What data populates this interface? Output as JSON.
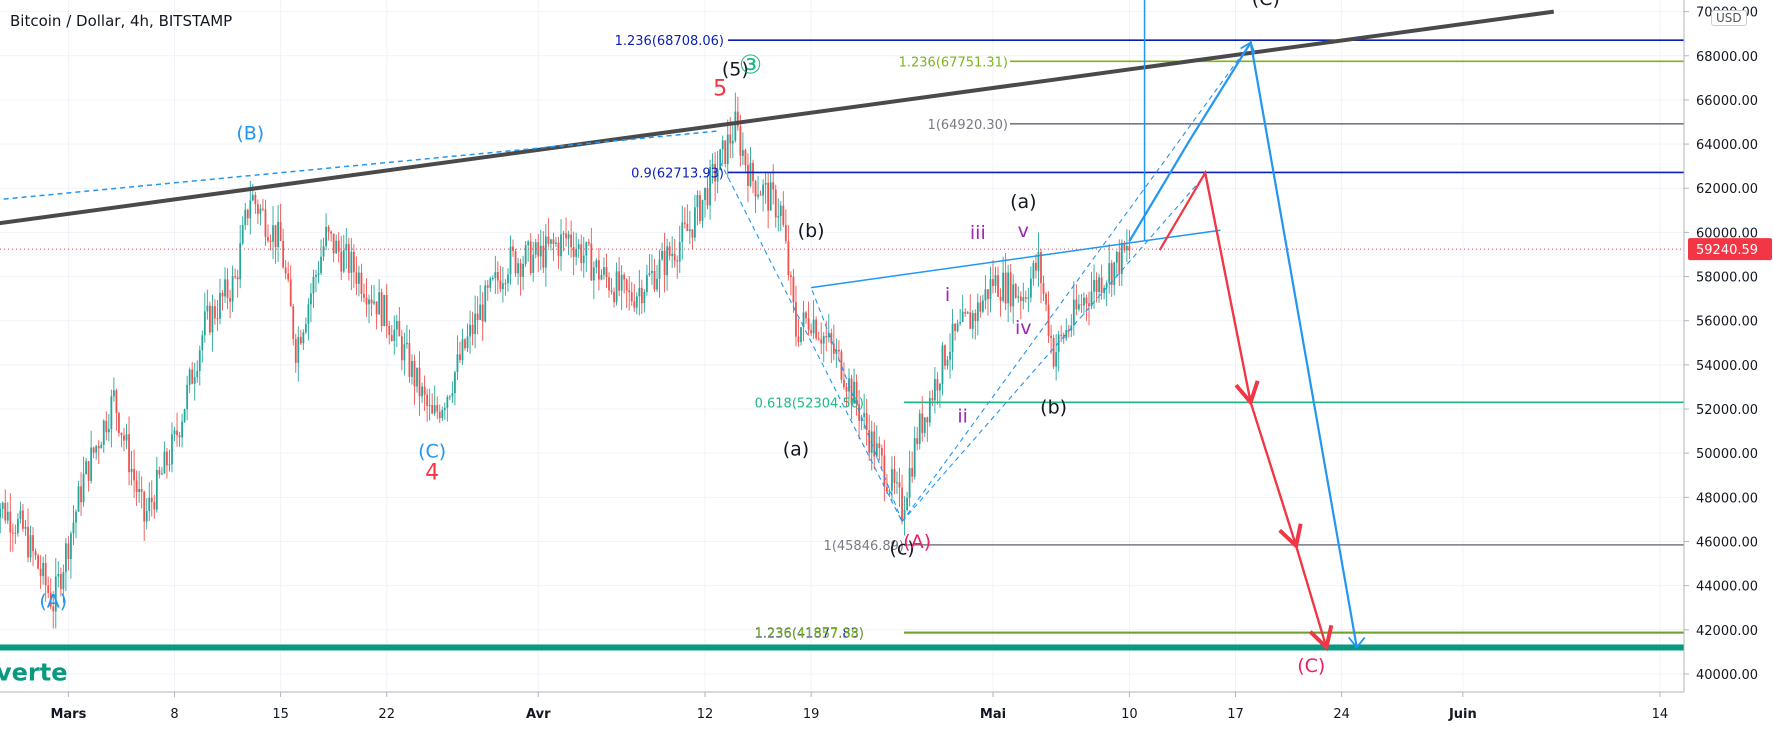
{
  "header": {
    "title": "Bitcoin / Dollar, 4h, BITSTAMP",
    "currency": "USD"
  },
  "colors": {
    "up": "#26a69a",
    "down": "#ef5350",
    "trend_dark": "#4a4a4a",
    "blue": "#2196f3",
    "red": "#f23645",
    "navy": "#0b1fb5",
    "lime": "#7cb518",
    "gray": "#787b86",
    "teal": "#1eb980",
    "purple": "#9c27b0",
    "pink": "#e91e63",
    "green_band": "#089981"
  },
  "chart_data": {
    "type": "candlestick",
    "symbol": "Bitcoin / Dollar",
    "interval": "4h",
    "exchange": "BITSTAMP",
    "currency": "USD",
    "last_price": "59240.59",
    "y_axis": {
      "range": [
        39500,
        70300
      ],
      "ticks": [
        "40000.00",
        "42000.00",
        "44000.00",
        "46000.00",
        "48000.00",
        "50000.00",
        "52000.00",
        "54000.00",
        "56000.00",
        "58000.00",
        "60000.00",
        "62000.00",
        "64000.00",
        "66000.00",
        "68000.00",
        "70000.00"
      ]
    },
    "x_axis": {
      "ticks": [
        {
          "label": "Mars",
          "date": "2021-03-01",
          "bold": true
        },
        {
          "label": "8",
          "date": "2021-03-08"
        },
        {
          "label": "15",
          "date": "2021-03-15"
        },
        {
          "label": "22",
          "date": "2021-03-22"
        },
        {
          "label": "Avr",
          "date": "2021-04-01",
          "bold": true
        },
        {
          "label": "12",
          "date": "2021-04-12"
        },
        {
          "label": "19",
          "date": "2021-04-19"
        },
        {
          "label": "Mai",
          "date": "2021-05-01",
          "bold": true
        },
        {
          "label": "10",
          "date": "2021-05-10"
        },
        {
          "label": "17",
          "date": "2021-05-17"
        },
        {
          "label": "24",
          "date": "2021-05-24"
        },
        {
          "label": "Juin",
          "date": "2021-06-01",
          "bold": true
        },
        {
          "label": "14",
          "date": "2021-06-14"
        }
      ]
    },
    "price_path": [
      [
        "2021-02-24",
        48000
      ],
      [
        "2021-02-26",
        46500
      ],
      [
        "2021-02-28",
        43200
      ],
      [
        "2021-03-02",
        48800
      ],
      [
        "2021-03-04",
        52500
      ],
      [
        "2021-03-06",
        47000
      ],
      [
        "2021-03-08",
        50500
      ],
      [
        "2021-03-10",
        55800
      ],
      [
        "2021-03-12",
        57800
      ],
      [
        "2021-03-13",
        61700
      ],
      [
        "2021-03-15",
        59500
      ],
      [
        "2021-03-16",
        54800
      ],
      [
        "2021-03-18",
        59800
      ],
      [
        "2021-03-20",
        58200
      ],
      [
        "2021-03-22",
        56200
      ],
      [
        "2021-03-23",
        54800
      ],
      [
        "2021-03-25",
        51500
      ],
      [
        "2021-03-26",
        52800
      ],
      [
        "2021-03-28",
        56200
      ],
      [
        "2021-03-30",
        58700
      ],
      [
        "2021-04-01",
        58900
      ],
      [
        "2021-04-03",
        59800
      ],
      [
        "2021-04-05",
        58200
      ],
      [
        "2021-04-07",
        57000
      ],
      [
        "2021-04-09",
        58400
      ],
      [
        "2021-04-11",
        60200
      ],
      [
        "2021-04-13",
        63200
      ],
      [
        "2021-04-14",
        64800
      ],
      [
        "2021-04-15",
        62500
      ],
      [
        "2021-04-17",
        61000
      ],
      [
        "2021-04-18",
        55500
      ],
      [
        "2021-04-19",
        56200
      ],
      [
        "2021-04-21",
        54000
      ],
      [
        "2021-04-23",
        50500
      ],
      [
        "2021-04-25",
        47500
      ],
      [
        "2021-04-26",
        50800
      ],
      [
        "2021-04-28",
        54800
      ],
      [
        "2021-04-30",
        56500
      ],
      [
        "2021-05-01",
        57800
      ],
      [
        "2021-05-03",
        57200
      ],
      [
        "2021-05-04",
        58600
      ],
      [
        "2021-05-05",
        54500
      ],
      [
        "2021-05-07",
        57000
      ],
      [
        "2021-05-08",
        57800
      ],
      [
        "2021-05-10",
        59200
      ]
    ],
    "horizontal_levels": [
      {
        "label": "1.236(68708.06)",
        "value": 68708.06,
        "color": "navy"
      },
      {
        "label": "1.236(67751.31)",
        "value": 67751.31,
        "color": "lime"
      },
      {
        "label": "1(64920.30)",
        "value": 64920.3,
        "color": "gray"
      },
      {
        "label": "0.9(62713.93)",
        "value": 62713.93,
        "color": "navy"
      },
      {
        "label": "0.618(52304.50)",
        "value": 52304.5,
        "color": "teal"
      },
      {
        "label": "1(45846.89)",
        "value": 45846.89,
        "color": "gray"
      },
      {
        "label": "1.236(41877.83)",
        "value": 41877.83,
        "color": "navy"
      },
      {
        "label": "1.236(41857.38)",
        "value": 41857.38,
        "color": "lime"
      }
    ],
    "wave_labels": [
      {
        "text": "(A)",
        "date": "2021-02-28",
        "price": 43000,
        "color": "blue"
      },
      {
        "text": "(B)",
        "date": "2021-03-13",
        "price": 64200,
        "color": "blue"
      },
      {
        "text": "(C)",
        "date": "2021-03-25",
        "price": 49800,
        "color": "blue"
      },
      {
        "text": "4",
        "date": "2021-03-25",
        "price": 48800,
        "color": "red"
      },
      {
        "text": "5",
        "date": "2021-04-13",
        "price": 66200,
        "color": "red"
      },
      {
        "text": "(5)",
        "date": "2021-04-14",
        "price": 67100,
        "color": "dark"
      },
      {
        "text": "③",
        "date": "2021-04-15",
        "price": 67200,
        "color": "teal"
      },
      {
        "text": "(b)",
        "date": "2021-04-19",
        "price": 59800,
        "color": "dark"
      },
      {
        "text": "(a)",
        "date": "2021-04-18",
        "price": 49900,
        "color": "dark"
      },
      {
        "text": "(c)",
        "date": "2021-04-25",
        "price": 45400,
        "color": "dark"
      },
      {
        "text": "(A)",
        "date": "2021-04-26",
        "price": 45700,
        "color": "pink"
      },
      {
        "text": "i",
        "date": "2021-04-28",
        "price": 56900,
        "color": "purple"
      },
      {
        "text": "ii",
        "date": "2021-04-29",
        "price": 51400,
        "color": "purple"
      },
      {
        "text": "iii",
        "date": "2021-04-30",
        "price": 59700,
        "color": "purple"
      },
      {
        "text": "iv",
        "date": "2021-05-03",
        "price": 55400,
        "color": "purple"
      },
      {
        "text": "v",
        "date": "2021-05-03",
        "price": 59800,
        "color": "purple"
      },
      {
        "text": "(a)",
        "date": "2021-05-03",
        "price": 61100,
        "color": "dark"
      },
      {
        "text": "(b)",
        "date": "2021-05-05",
        "price": 51800,
        "color": "dark"
      },
      {
        "text": "(C)",
        "date": "2021-05-22",
        "price": 40100,
        "color": "pink"
      },
      {
        "text": "(C)",
        "date": "2021-05-19",
        "price": 70300,
        "color": "dark"
      }
    ],
    "trendlines": [
      {
        "name": "resistance",
        "color": "trend_dark",
        "from": [
          "2021-02-20",
          60000
        ],
        "to": [
          "2021-06-07",
          70000
        ]
      },
      {
        "name": "dashed-top",
        "color": "blue",
        "dash": true,
        "from": [
          "2021-02-20",
          61200
        ],
        "to": [
          "2021-04-13",
          64600
        ]
      },
      {
        "name": "wedge-top",
        "color": "blue",
        "from": [
          "2021-04-19",
          57500
        ],
        "to": [
          "2021-05-16",
          60100
        ]
      }
    ],
    "projections": [
      {
        "name": "red-path",
        "color": "red",
        "points": [
          [
            "2021-05-12",
            59200
          ],
          [
            "2021-05-15",
            62700
          ],
          [
            "2021-05-18",
            52300
          ],
          [
            "2021-05-21",
            45800
          ],
          [
            "2021-05-23",
            41200
          ]
        ]
      },
      {
        "name": "blue-path",
        "color": "blue",
        "points": [
          [
            "2021-05-10",
            59600
          ],
          [
            "2021-05-14",
            64200
          ],
          [
            "2021-05-18",
            68600
          ],
          [
            "2021-05-25",
            41200
          ]
        ]
      }
    ],
    "green_zone_label": "verte",
    "green_zone_value": 41200
  }
}
